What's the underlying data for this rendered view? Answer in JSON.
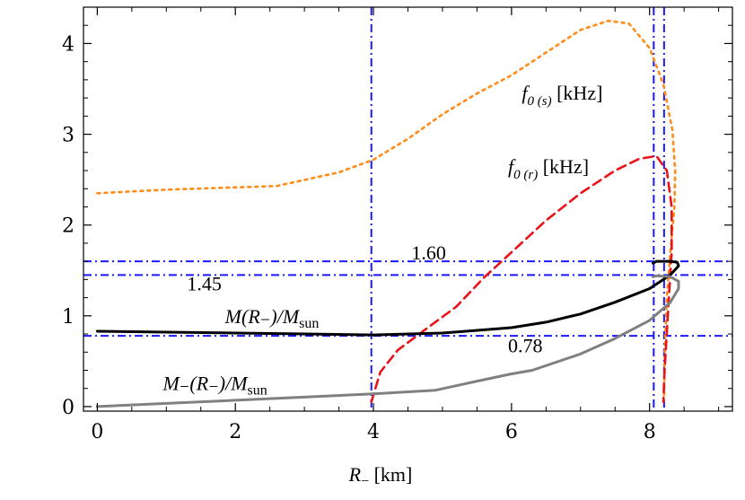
{
  "chart_data": {
    "type": "line",
    "xlabel": {
      "var": "R",
      "sub": "−",
      "unit": "[km]"
    },
    "ylabel": "",
    "xlim": [
      -0.2,
      9.2
    ],
    "ylim": [
      -0.05,
      4.4
    ],
    "xticks": [
      0,
      2,
      4,
      6,
      8
    ],
    "xtick_labels": [
      "0",
      "2",
      "4",
      "6",
      "8"
    ],
    "yticks": [
      0,
      1,
      2,
      3,
      4
    ],
    "ytick_labels": [
      "0",
      "1",
      "2",
      "3",
      "4"
    ],
    "grid": false,
    "legend": "none",
    "series": [
      {
        "id": "f0s",
        "color": "#ff8c1a",
        "dash": "dotted",
        "points": [
          [
            0,
            2.35
          ],
          [
            1,
            2.39
          ],
          [
            2.6,
            2.43
          ],
          [
            3.5,
            2.58
          ],
          [
            4,
            2.72
          ],
          [
            4.5,
            2.95
          ],
          [
            5,
            3.22
          ],
          [
            5.5,
            3.45
          ],
          [
            6,
            3.65
          ],
          [
            6.5,
            3.9
          ],
          [
            7,
            4.15
          ],
          [
            7.4,
            4.25
          ],
          [
            7.7,
            4.22
          ],
          [
            8.0,
            3.95
          ],
          [
            8.2,
            3.55
          ],
          [
            8.33,
            3.05
          ],
          [
            8.37,
            2.6
          ],
          [
            8.36,
            2.2
          ],
          [
            8.3,
            1.7
          ],
          [
            8.25,
            1.2
          ],
          [
            8.22,
            0.6
          ],
          [
            8.21,
            0.1
          ]
        ]
      },
      {
        "id": "f0r",
        "color": "#e8141a",
        "dash": "dashed",
        "points": [
          [
            3.97,
            0.05
          ],
          [
            4.1,
            0.38
          ],
          [
            4.35,
            0.62
          ],
          [
            4.7,
            0.82
          ],
          [
            5.2,
            1.1
          ],
          [
            5.6,
            1.42
          ],
          [
            6,
            1.7
          ],
          [
            6.5,
            2.05
          ],
          [
            7,
            2.35
          ],
          [
            7.5,
            2.6
          ],
          [
            7.85,
            2.73
          ],
          [
            8.1,
            2.76
          ],
          [
            8.25,
            2.6
          ],
          [
            8.32,
            2.2
          ],
          [
            8.32,
            1.7
          ],
          [
            8.28,
            1.2
          ],
          [
            8.24,
            0.7
          ],
          [
            8.21,
            0.3
          ],
          [
            8.2,
            0.05
          ]
        ]
      },
      {
        "id": "mass",
        "color": "#000000",
        "dash": "solid",
        "points": [
          [
            0,
            0.83
          ],
          [
            1,
            0.82
          ],
          [
            2,
            0.81
          ],
          [
            3,
            0.8
          ],
          [
            4,
            0.79
          ],
          [
            5,
            0.81
          ],
          [
            6,
            0.87
          ],
          [
            6.5,
            0.93
          ],
          [
            7,
            1.02
          ],
          [
            7.5,
            1.15
          ],
          [
            8,
            1.3
          ],
          [
            8.3,
            1.45
          ],
          [
            8.42,
            1.55
          ],
          [
            8.4,
            1.59
          ],
          [
            8.3,
            1.6
          ],
          [
            8.1,
            1.6
          ],
          [
            8.05,
            1.58
          ]
        ]
      },
      {
        "id": "mminus",
        "color": "#808080",
        "dash": "solid",
        "points": [
          [
            0,
            0.0
          ],
          [
            2,
            0.07
          ],
          [
            4,
            0.14
          ],
          [
            4.9,
            0.18
          ],
          [
            5.5,
            0.28
          ],
          [
            6,
            0.36
          ],
          [
            6.3,
            0.4
          ],
          [
            7,
            0.58
          ],
          [
            7.5,
            0.75
          ],
          [
            8,
            0.95
          ],
          [
            8.3,
            1.15
          ],
          [
            8.42,
            1.3
          ],
          [
            8.42,
            1.38
          ],
          [
            8.3,
            1.43
          ],
          [
            8.1,
            1.44
          ],
          [
            8.05,
            1.43
          ]
        ]
      }
    ],
    "reference_lines": {
      "color": "#1a1aff",
      "vertical": [
        3.97,
        8.06,
        8.21
      ],
      "horizontal": [
        1.6,
        1.45,
        0.78
      ]
    },
    "annotations": [
      {
        "id": "f0s-label",
        "main": "f",
        "sub": "0 (s)",
        "rest": " [kHz]",
        "x": 6.15,
        "y": 3.38
      },
      {
        "id": "f0r-label",
        "main": "f",
        "sub": "0 (r)",
        "rest": " [kHz]",
        "x": 5.95,
        "y": 2.57
      },
      {
        "id": "val-160",
        "text": "1.60",
        "x": 4.55,
        "y": 1.62
      },
      {
        "id": "val-145",
        "text": "1.45",
        "x": 1.3,
        "y": 1.28
      },
      {
        "id": "val-078",
        "text": "0.78",
        "x": 5.95,
        "y": 0.6
      },
      {
        "id": "mass-label",
        "text": "M(R₋)/M",
        "sub": "sun",
        "x": 1.85,
        "y": 0.92
      },
      {
        "id": "mminus-label",
        "text": "M₋(R₋)/M",
        "sub": "sun",
        "x": 0.95,
        "y": 0.18
      }
    ]
  }
}
